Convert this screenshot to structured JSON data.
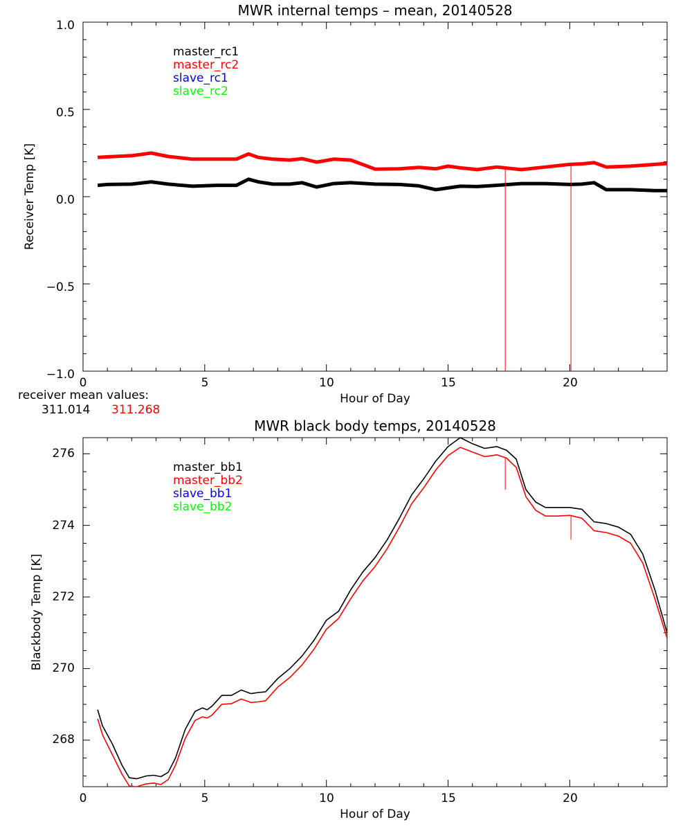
{
  "chart_data": [
    {
      "type": "line",
      "title": "MWR internal temps – mean, 20140528",
      "xlabel": "Hour of Day",
      "ylabel": "Receiver Temp [K]",
      "xlim": [
        0,
        24
      ],
      "ylim": [
        -1.0,
        1.0
      ],
      "xticks": [
        0,
        5,
        10,
        15,
        20
      ],
      "yticks": [
        -1.0,
        -0.5,
        0.0,
        0.5,
        1.0
      ],
      "ytick_labels": [
        "−1.0",
        "−0.5",
        "0.0",
        "0.5",
        "1.0"
      ],
      "legend": [
        "master_rc1",
        "master_rc2",
        "slave_rc1",
        "slave_rc2"
      ],
      "legend_colors": [
        "#000000",
        "#ff0000",
        "#0000ff",
        "#00ff00"
      ],
      "legend_position": "top-left",
      "series": [
        {
          "name": "master_rc1",
          "color": "#000000",
          "x": [
            0.6,
            1.0,
            2.0,
            2.8,
            3.5,
            4.5,
            5.5,
            6.3,
            6.8,
            7.2,
            7.8,
            8.5,
            9.0,
            9.6,
            10.3,
            11.0,
            12.0,
            13.0,
            13.8,
            14.5,
            15.0,
            15.5,
            16.2,
            17.0,
            18.0,
            19.0,
            20.0,
            20.5,
            21.0,
            21.5,
            22.5,
            23.5,
            24.0
          ],
          "y": [
            0.065,
            0.07,
            0.072,
            0.085,
            0.072,
            0.06,
            0.065,
            0.065,
            0.1,
            0.085,
            0.072,
            0.072,
            0.08,
            0.055,
            0.075,
            0.08,
            0.072,
            0.07,
            0.062,
            0.04,
            0.05,
            0.06,
            0.058,
            0.065,
            0.075,
            0.075,
            0.07,
            0.072,
            0.08,
            0.04,
            0.04,
            0.035,
            0.035
          ]
        },
        {
          "name": "master_rc2",
          "color": "#ff0000",
          "x": [
            0.6,
            1.0,
            2.0,
            2.8,
            3.5,
            4.5,
            5.5,
            6.3,
            6.8,
            7.2,
            7.8,
            8.5,
            9.0,
            9.6,
            10.3,
            11.0,
            12.0,
            13.0,
            13.8,
            14.5,
            15.0,
            15.5,
            16.2,
            17.0,
            18.0,
            19.0,
            20.0,
            20.5,
            21.0,
            21.5,
            22.5,
            23.5,
            24.0
          ],
          "y": [
            0.225,
            0.228,
            0.235,
            0.25,
            0.23,
            0.215,
            0.215,
            0.215,
            0.245,
            0.225,
            0.215,
            0.21,
            0.218,
            0.198,
            0.215,
            0.21,
            0.158,
            0.16,
            0.168,
            0.16,
            0.175,
            0.165,
            0.155,
            0.17,
            0.155,
            0.17,
            0.185,
            0.188,
            0.195,
            0.17,
            0.175,
            0.185,
            0.19
          ]
        }
      ],
      "spikes": [
        {
          "series": "master_rc2",
          "x": 17.35,
          "y_low": -1.0
        },
        {
          "series": "master_rc2",
          "x": 20.05,
          "y_low": -1.0
        }
      ],
      "annotation_label": "receiver mean values:",
      "annotation_values": [
        "311.014",
        "311.268"
      ],
      "annotation_colors": [
        "#000000",
        "#ff0000"
      ]
    },
    {
      "type": "line",
      "title": "MWR black body temps, 20140528",
      "xlabel": "Hour of Day",
      "ylabel": "Blackbody Temp [K]",
      "xlim": [
        0,
        24
      ],
      "ylim": [
        266.7,
        276.45
      ],
      "xticks": [
        0,
        5,
        10,
        15,
        20
      ],
      "yticks": [
        268,
        270,
        272,
        274,
        276
      ],
      "legend": [
        "master_bb1",
        "master_bb2",
        "slave_bb1",
        "slave_bb2"
      ],
      "legend_colors": [
        "#000000",
        "#ff0000",
        "#0000ff",
        "#00ff00"
      ],
      "legend_position": "top-left",
      "series": [
        {
          "name": "master_bb1",
          "color": "#000000",
          "x": [
            0.6,
            0.8,
            1.2,
            1.6,
            1.9,
            2.2,
            2.6,
            2.9,
            3.2,
            3.5,
            3.8,
            4.2,
            4.6,
            4.9,
            5.1,
            5.3,
            5.7,
            6.1,
            6.5,
            6.9,
            7.2,
            7.5,
            8.0,
            8.5,
            9.0,
            9.5,
            10.0,
            10.5,
            11.0,
            11.5,
            12.0,
            12.5,
            13.0,
            13.5,
            14.0,
            14.5,
            15.0,
            15.5,
            16.0,
            16.5,
            17.0,
            17.4,
            17.8,
            18.2,
            18.6,
            19.0,
            19.5,
            20.0,
            20.5,
            21.0,
            21.5,
            22.0,
            22.5,
            23.0,
            23.5,
            24.0
          ],
          "y": [
            268.85,
            268.4,
            267.9,
            267.3,
            266.95,
            266.92,
            267.0,
            267.02,
            266.98,
            267.1,
            267.5,
            268.3,
            268.8,
            268.9,
            268.85,
            268.95,
            269.25,
            269.25,
            269.4,
            269.3,
            269.33,
            269.35,
            269.72,
            270.0,
            270.35,
            270.8,
            271.35,
            271.6,
            272.2,
            272.7,
            273.1,
            273.6,
            274.2,
            274.85,
            275.3,
            275.8,
            276.2,
            276.45,
            276.28,
            276.15,
            276.2,
            276.1,
            275.85,
            275.0,
            274.65,
            274.5,
            274.5,
            274.5,
            274.45,
            274.1,
            274.05,
            273.95,
            273.75,
            273.2,
            272.2,
            271.0
          ]
        },
        {
          "name": "master_bb2",
          "color": "#ff0000",
          "x": [
            0.6,
            0.8,
            1.2,
            1.6,
            1.9,
            2.2,
            2.6,
            2.9,
            3.2,
            3.5,
            3.8,
            4.2,
            4.6,
            4.9,
            5.1,
            5.3,
            5.7,
            6.1,
            6.5,
            6.9,
            7.2,
            7.5,
            8.0,
            8.5,
            9.0,
            9.5,
            10.0,
            10.5,
            11.0,
            11.5,
            12.0,
            12.5,
            13.0,
            13.5,
            14.0,
            14.5,
            15.0,
            15.5,
            16.0,
            16.5,
            17.0,
            17.4,
            17.8,
            18.2,
            18.6,
            19.0,
            19.5,
            20.0,
            20.5,
            21.0,
            21.5,
            22.0,
            22.5,
            23.0,
            23.5,
            24.0
          ],
          "y": [
            268.6,
            268.15,
            267.6,
            267.05,
            266.72,
            266.7,
            266.78,
            266.8,
            266.76,
            266.9,
            267.3,
            268.05,
            268.55,
            268.65,
            268.62,
            268.7,
            269.0,
            269.02,
            269.15,
            269.05,
            269.07,
            269.1,
            269.48,
            269.75,
            270.1,
            270.55,
            271.1,
            271.4,
            271.95,
            272.45,
            272.85,
            273.35,
            273.95,
            274.6,
            275.05,
            275.55,
            275.95,
            276.18,
            276.05,
            275.92,
            275.97,
            275.88,
            275.62,
            274.8,
            274.42,
            274.26,
            274.26,
            274.28,
            274.2,
            273.85,
            273.8,
            273.7,
            273.5,
            272.95,
            271.95,
            270.85
          ]
        }
      ],
      "spikes": [
        {
          "series": "master_bb2",
          "x": 17.35,
          "y_low": 275.0
        },
        {
          "series": "master_bb2",
          "x": 20.05,
          "y_low": 273.6
        }
      ]
    }
  ]
}
